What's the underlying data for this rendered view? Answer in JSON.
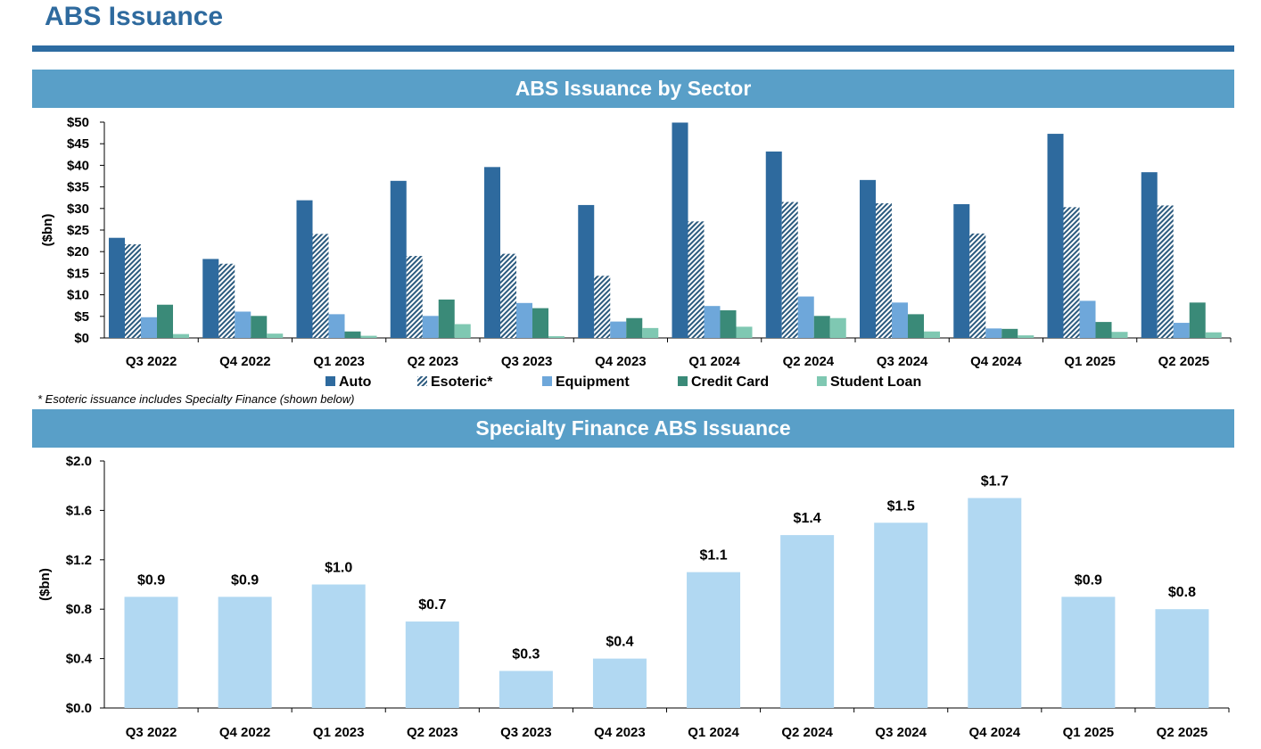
{
  "page": {
    "title": "ABS Issuance"
  },
  "colors": {
    "title": "#2e6a9e",
    "banner": "#599fc8",
    "auto": "#2e6a9e",
    "esoteric": "#2b5a7e",
    "equipment": "#6ea7da",
    "credit_card": "#3a8a78",
    "student_loan": "#7fc8b2",
    "specialty": "#b1d8f2"
  },
  "footnote": "* Esoteric issuance includes Specialty Finance (shown below)",
  "chart_data": [
    {
      "type": "bar",
      "title": "ABS Issuance by Sector",
      "ylabel": "($bn)",
      "xlabel": "",
      "ylim": [
        0,
        50
      ],
      "y_ticks": [
        "$0",
        "$5",
        "$10",
        "$15",
        "$20",
        "$25",
        "$30",
        "$35",
        "$40",
        "$45",
        "$50"
      ],
      "categories": [
        "Q3 2022",
        "Q4 2022",
        "Q1 2023",
        "Q2 2023",
        "Q3 2023",
        "Q4 2023",
        "Q1 2024",
        "Q2 2024",
        "Q3 2024",
        "Q4 2024",
        "Q1 2025",
        "Q2 2025"
      ],
      "series": [
        {
          "name": "Auto",
          "values": [
            23.2,
            18.3,
            31.9,
            36.4,
            39.6,
            30.8,
            49.9,
            43.2,
            36.6,
            31.0,
            47.3,
            38.4
          ]
        },
        {
          "name": "Esoteric*",
          "values": [
            21.7,
            17.2,
            24.1,
            19.0,
            19.5,
            14.4,
            27.0,
            31.5,
            31.2,
            24.2,
            30.3,
            30.7
          ]
        },
        {
          "name": "Equipment",
          "values": [
            4.8,
            6.1,
            5.5,
            5.1,
            8.1,
            3.8,
            7.4,
            9.6,
            8.2,
            2.2,
            8.6,
            3.5
          ]
        },
        {
          "name": "Credit Card",
          "values": [
            7.7,
            5.1,
            1.5,
            8.9,
            6.9,
            4.6,
            6.4,
            5.1,
            5.5,
            2.1,
            3.7,
            8.2
          ]
        },
        {
          "name": "Student Loan",
          "values": [
            0.9,
            1.0,
            0.5,
            3.2,
            0.4,
            2.3,
            2.6,
            4.6,
            1.5,
            0.6,
            1.4,
            1.3
          ]
        }
      ],
      "legend": [
        "Auto",
        "Esoteric*",
        "Equipment",
        "Credit Card",
        "Student Loan"
      ]
    },
    {
      "type": "bar",
      "title": "Specialty Finance ABS Issuance",
      "ylabel": "($bn)",
      "xlabel": "",
      "ylim": [
        0,
        2.0
      ],
      "y_ticks": [
        "$0.0",
        "$0.4",
        "$0.8",
        "$1.2",
        "$1.6",
        "$2.0"
      ],
      "categories": [
        "Q3 2022",
        "Q4 2022",
        "Q1 2023",
        "Q2 2023",
        "Q3 2023",
        "Q4 2023",
        "Q1 2024",
        "Q2 2024",
        "Q3 2024",
        "Q4 2024",
        "Q1 2025",
        "Q2 2025"
      ],
      "values": [
        0.9,
        0.9,
        1.0,
        0.7,
        0.3,
        0.4,
        1.1,
        1.4,
        1.5,
        1.7,
        0.9,
        0.8
      ],
      "data_labels": [
        "$0.9",
        "$0.9",
        "$1.0",
        "$0.7",
        "$0.3",
        "$0.4",
        "$1.1",
        "$1.4",
        "$1.5",
        "$1.7",
        "$0.9",
        "$0.8"
      ]
    }
  ]
}
